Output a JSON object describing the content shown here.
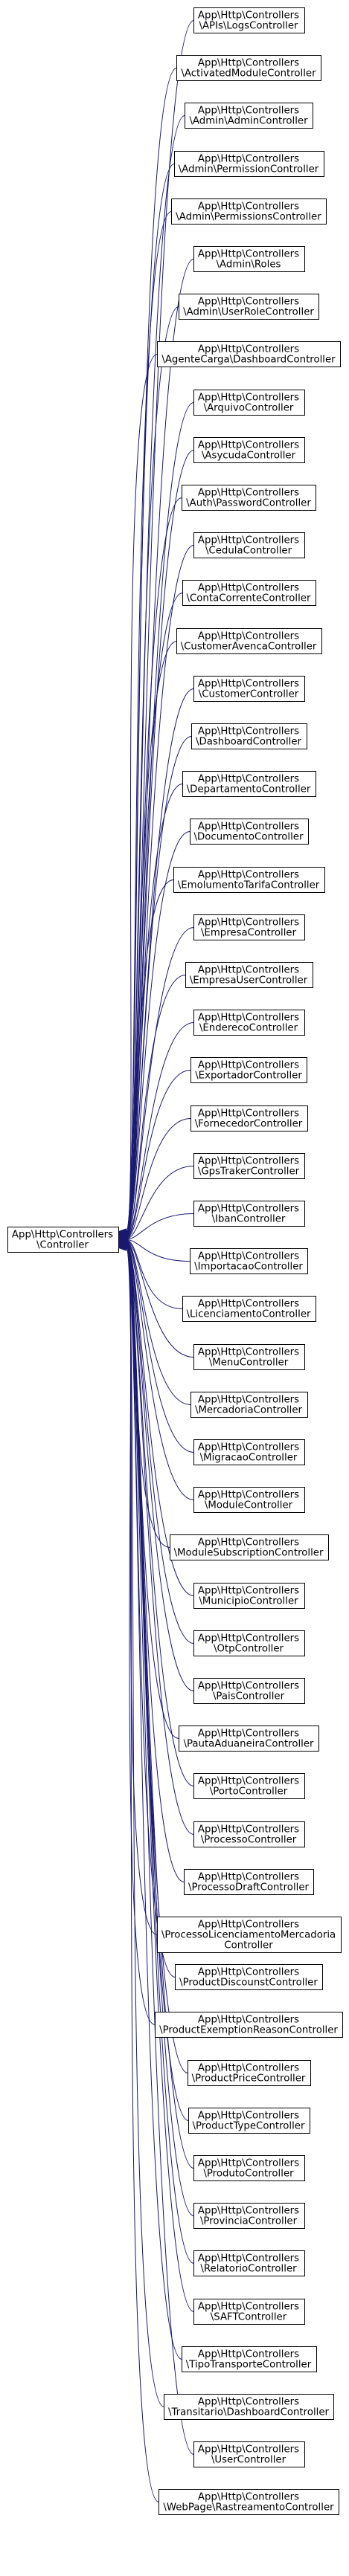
{
  "base": {
    "name": "base-controller",
    "lines": [
      "App\\Http\\Controllers",
      "\\Controller"
    ]
  },
  "derived": [
    {
      "name": "api-logs-controller",
      "lines": [
        "App\\Http\\Controllers",
        "\\APIs\\LogsController"
      ]
    },
    {
      "name": "activated-module-controller",
      "lines": [
        "App\\Http\\Controllers",
        "\\ActivatedModuleController"
      ]
    },
    {
      "name": "admin-admin-controller",
      "lines": [
        "App\\Http\\Controllers",
        "\\Admin\\AdminController"
      ]
    },
    {
      "name": "admin-permission-controller",
      "lines": [
        "App\\Http\\Controllers",
        "\\Admin\\PermissionController"
      ]
    },
    {
      "name": "admin-permissions-controller",
      "lines": [
        "App\\Http\\Controllers",
        "\\Admin\\PermissionsController"
      ]
    },
    {
      "name": "admin-roles",
      "lines": [
        "App\\Http\\Controllers",
        "\\Admin\\Roles"
      ]
    },
    {
      "name": "admin-user-role-controller",
      "lines": [
        "App\\Http\\Controllers",
        "\\Admin\\UserRoleController"
      ]
    },
    {
      "name": "agente-carga-dashboard-controller",
      "lines": [
        "App\\Http\\Controllers",
        "\\AgenteCarga\\DashboardController"
      ]
    },
    {
      "name": "arquivo-controller",
      "lines": [
        "App\\Http\\Controllers",
        "\\ArquivoController"
      ]
    },
    {
      "name": "asycuda-controller",
      "lines": [
        "App\\Http\\Controllers",
        "\\AsycudaController"
      ]
    },
    {
      "name": "auth-password-controller",
      "lines": [
        "App\\Http\\Controllers",
        "\\Auth\\PasswordController"
      ]
    },
    {
      "name": "cedula-controller",
      "lines": [
        "App\\Http\\Controllers",
        "\\CedulaController"
      ]
    },
    {
      "name": "conta-corrente-controller",
      "lines": [
        "App\\Http\\Controllers",
        "\\ContaCorrenteController"
      ]
    },
    {
      "name": "customer-avenca-controller",
      "lines": [
        "App\\Http\\Controllers",
        "\\CustomerAvencaController"
      ]
    },
    {
      "name": "customer-controller",
      "lines": [
        "App\\Http\\Controllers",
        "\\CustomerController"
      ]
    },
    {
      "name": "dashboard-controller",
      "lines": [
        "App\\Http\\Controllers",
        "\\DashboardController"
      ]
    },
    {
      "name": "departamento-controller",
      "lines": [
        "App\\Http\\Controllers",
        "\\DepartamentoController"
      ]
    },
    {
      "name": "documento-controller",
      "lines": [
        "App\\Http\\Controllers",
        "\\DocumentoController"
      ]
    },
    {
      "name": "emolumento-tarifa-controller",
      "lines": [
        "App\\Http\\Controllers",
        "\\EmolumentoTarifaController"
      ]
    },
    {
      "name": "empresa-controller",
      "lines": [
        "App\\Http\\Controllers",
        "\\EmpresaController"
      ]
    },
    {
      "name": "empresa-user-controller",
      "lines": [
        "App\\Http\\Controllers",
        "\\EmpresaUserController"
      ]
    },
    {
      "name": "endereco-controller",
      "lines": [
        "App\\Http\\Controllers",
        "\\EnderecoController"
      ]
    },
    {
      "name": "exportador-controller",
      "lines": [
        "App\\Http\\Controllers",
        "\\ExportadorController"
      ]
    },
    {
      "name": "fornecedor-controller",
      "lines": [
        "App\\Http\\Controllers",
        "\\FornecedorController"
      ]
    },
    {
      "name": "gps-traker-controller",
      "lines": [
        "App\\Http\\Controllers",
        "\\GpsTrakerController"
      ]
    },
    {
      "name": "iban-controller",
      "lines": [
        "App\\Http\\Controllers",
        "\\IbanController"
      ]
    },
    {
      "name": "importacao-controller",
      "lines": [
        "App\\Http\\Controllers",
        "\\ImportacaoController"
      ]
    },
    {
      "name": "licenciamento-controller",
      "lines": [
        "App\\Http\\Controllers",
        "\\LicenciamentoController"
      ]
    },
    {
      "name": "menu-controller",
      "lines": [
        "App\\Http\\Controllers",
        "\\MenuController"
      ]
    },
    {
      "name": "mercadoria-controller",
      "lines": [
        "App\\Http\\Controllers",
        "\\MercadoriaController"
      ]
    },
    {
      "name": "migracao-controller",
      "lines": [
        "App\\Http\\Controllers",
        "\\MigracaoController"
      ]
    },
    {
      "name": "module-controller",
      "lines": [
        "App\\Http\\Controllers",
        "\\ModuleController"
      ]
    },
    {
      "name": "module-subscription-controller",
      "lines": [
        "App\\Http\\Controllers",
        "\\ModuleSubscriptionController"
      ]
    },
    {
      "name": "municipio-controller",
      "lines": [
        "App\\Http\\Controllers",
        "\\MunicipioController"
      ]
    },
    {
      "name": "otp-controller",
      "lines": [
        "App\\Http\\Controllers",
        "\\OtpController"
      ]
    },
    {
      "name": "pais-controller",
      "lines": [
        "App\\Http\\Controllers",
        "\\PaisController"
      ]
    },
    {
      "name": "pauta-aduaneira-controller",
      "lines": [
        "App\\Http\\Controllers",
        "\\PautaAduaneiraController"
      ]
    },
    {
      "name": "porto-controller",
      "lines": [
        "App\\Http\\Controllers",
        "\\PortoController"
      ]
    },
    {
      "name": "processo-controller",
      "lines": [
        "App\\Http\\Controllers",
        "\\ProcessoController"
      ]
    },
    {
      "name": "processo-draft-controller",
      "lines": [
        "App\\Http\\Controllers",
        "\\ProcessoDraftController"
      ]
    },
    {
      "name": "processo-licenciamento-mercadoria-controller",
      "lines": [
        "App\\Http\\Controllers",
        "\\ProcessoLicenciamentoMercadoria",
        "Controller"
      ]
    },
    {
      "name": "product-discounst-controller",
      "lines": [
        "App\\Http\\Controllers",
        "\\ProductDiscounstController"
      ]
    },
    {
      "name": "product-exemption-reason-controller",
      "lines": [
        "App\\Http\\Controllers",
        "\\ProductExemptionReasonController"
      ]
    },
    {
      "name": "product-price-controller",
      "lines": [
        "App\\Http\\Controllers",
        "\\ProductPriceController"
      ]
    },
    {
      "name": "product-type-controller",
      "lines": [
        "App\\Http\\Controllers",
        "\\ProductTypeController"
      ]
    },
    {
      "name": "produto-controller",
      "lines": [
        "App\\Http\\Controllers",
        "\\ProdutoController"
      ]
    },
    {
      "name": "provincia-controller",
      "lines": [
        "App\\Http\\Controllers",
        "\\ProvinciaController"
      ]
    },
    {
      "name": "relatorio-controller",
      "lines": [
        "App\\Http\\Controllers",
        "\\RelatorioController"
      ]
    },
    {
      "name": "saft-controller",
      "lines": [
        "App\\Http\\Controllers",
        "\\SAFTController"
      ]
    },
    {
      "name": "tipo-transporte-controller",
      "lines": [
        "App\\Http\\Controllers",
        "\\TipoTransporteController"
      ]
    },
    {
      "name": "transitario-dashboard-controller",
      "lines": [
        "App\\Http\\Controllers",
        "\\Transitario\\DashboardController"
      ]
    },
    {
      "name": "user-controller",
      "lines": [
        "App\\Http\\Controllers",
        "\\UserController"
      ]
    },
    {
      "name": "webpage-rastreamento-controller",
      "lines": [
        "App\\Http\\Controllers",
        "\\WebPage\\RastreamentoController"
      ]
    }
  ],
  "colors": {
    "edge": "#191970",
    "node_border": "#000000",
    "node_fill": "#ffffff",
    "text": "#000000"
  }
}
